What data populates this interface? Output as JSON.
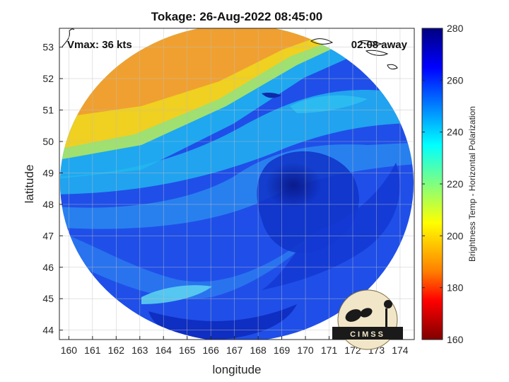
{
  "title": "Tokage: 26-Aug-2022 08:45:00",
  "overlay": {
    "vmax": "Vmax: 36 kts",
    "away": "02:08 away"
  },
  "logo": {
    "text": "CIMSS"
  },
  "chart_data": {
    "type": "heatmap",
    "xlabel": "longitude",
    "ylabel": "latitude",
    "xlim": [
      159.6,
      174.6
    ],
    "ylim": [
      43.7,
      53.6
    ],
    "xticks": [
      "160",
      "161",
      "162",
      "163",
      "164",
      "165",
      "166",
      "167",
      "168",
      "169",
      "170",
      "171",
      "172",
      "173",
      "174"
    ],
    "yticks": [
      "44",
      "45",
      "46",
      "47",
      "48",
      "49",
      "50",
      "51",
      "52",
      "53"
    ],
    "grid": true,
    "colorbar": {
      "label": "Brightness Temp - Horizontal Polarization",
      "range": [
        160,
        280
      ],
      "ticks": [
        "160",
        "180",
        "200",
        "220",
        "240",
        "260",
        "280"
      ],
      "colormap": "jet"
    },
    "storm_center": {
      "lon": 169.5,
      "lat": 48.8
    }
  }
}
